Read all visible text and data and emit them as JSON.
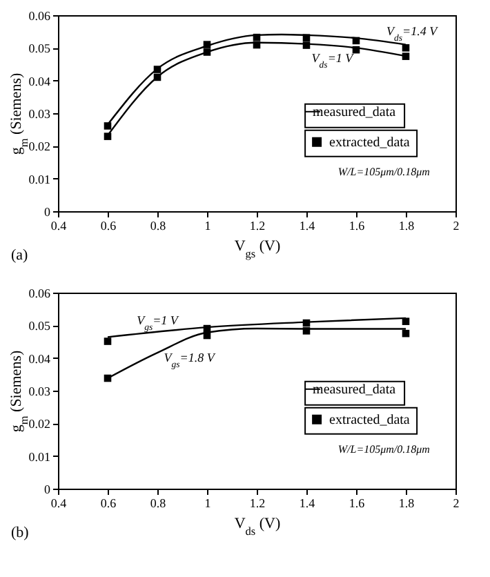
{
  "chart_data": [
    {
      "type": "line",
      "xlabel": "V$_{gs}$ (V)",
      "ylabel": "g$_{m}$ (Siemens)",
      "xlim": [
        0.4,
        2
      ],
      "xticks": [
        0.4,
        0.6,
        0.8,
        1,
        1.2,
        1.4,
        1.6,
        1.8,
        2
      ],
      "ylim": [
        0,
        0.06
      ],
      "yticks": [
        0,
        0.01,
        0.02,
        0.03,
        0.04,
        0.05,
        0.06
      ],
      "legend": "right",
      "annotations": [
        "(a)",
        "W/L=105μm/0.18μm",
        "V$_{ds}$=1.4 V",
        "V$_{ds}$=1 V"
      ],
      "line_style": "solid",
      "series": [
        {
          "name": "measured_data",
          "type": "line",
          "color": "#000000",
          "x": [
            0.6,
            0.8,
            1.0,
            1.2,
            1.3,
            1.4,
            1.6,
            1.8
          ],
          "values": [
            0.0265,
            0.0436,
            0.0506,
            0.0539,
            0.0541,
            0.0539,
            0.053,
            0.051
          ]
        },
        {
          "type": "line",
          "color": "#000000",
          "x": [
            0.6,
            0.8,
            1.0,
            1.2,
            1.4,
            1.6,
            1.8
          ],
          "values": [
            0.0232,
            0.0411,
            0.0487,
            0.0516,
            0.0512,
            0.05,
            0.0475
          ]
        },
        {
          "name": "extracted_data",
          "type": "scatter",
          "marker": "square",
          "color": "#000000",
          "x": [
            0.6,
            0.8,
            1.0,
            1.2,
            1.4,
            1.6,
            1.8
          ],
          "values": [
            0.0261,
            0.0434,
            0.051,
            0.0532,
            0.0531,
            0.0522,
            0.05
          ]
        },
        {
          "type": "scatter",
          "marker": "square",
          "color": "#000000",
          "x": [
            0.6,
            0.8,
            1.0,
            1.2,
            1.4,
            1.6,
            1.8
          ],
          "values": [
            0.0229,
            0.041,
            0.0487,
            0.0509,
            0.0508,
            0.0494,
            0.0474
          ]
        }
      ]
    },
    {
      "type": "line",
      "xlabel": "V$_{ds}$ (V)",
      "ylabel": "g$_{m}$ (Siemens)",
      "xlim": [
        0.4,
        2
      ],
      "xticks": [
        0.4,
        0.6,
        0.8,
        1,
        1.2,
        1.4,
        1.6,
        1.8,
        2
      ],
      "ylim": [
        0,
        0.06
      ],
      "yticks": [
        0,
        0.01,
        0.02,
        0.03,
        0.04,
        0.05,
        0.06
      ],
      "legend": "right",
      "annotations": [
        "(b)",
        "W/L=105μm/0.18μm",
        "V$_{gs}$=1 V",
        "V$_{gs}$=1.8 V"
      ],
      "line_style": "solid",
      "series": [
        {
          "name": "measured_data",
          "type": "line",
          "color": "#000000",
          "x": [
            0.6,
            1.0,
            1.4,
            1.8
          ],
          "values": [
            0.0464,
            0.0494,
            0.051,
            0.0522
          ]
        },
        {
          "type": "line",
          "color": "#000000",
          "x": [
            0.6,
            0.8,
            1.0,
            1.2,
            1.4,
            1.8
          ],
          "values": [
            0.0338,
            0.0416,
            0.0478,
            0.049,
            0.0489,
            0.0489
          ]
        },
        {
          "name": "extracted_data",
          "type": "scatter",
          "marker": "square",
          "color": "#000000",
          "x": [
            0.6,
            1.0,
            1.4,
            1.8
          ],
          "values": [
            0.0451,
            0.049,
            0.0507,
            0.0512
          ]
        },
        {
          "type": "scatter",
          "marker": "square",
          "color": "#000000",
          "x": [
            0.6,
            1.0,
            1.4,
            1.8
          ],
          "values": [
            0.0338,
            0.0469,
            0.0483,
            0.0475
          ]
        }
      ]
    }
  ]
}
